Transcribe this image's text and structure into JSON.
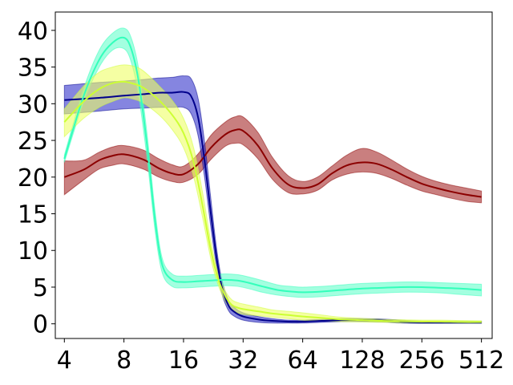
{
  "chart_data": {
    "type": "line",
    "title": "",
    "xlabel": "",
    "ylabel": "",
    "x_scale": "log2",
    "x_ticks": [
      4,
      8,
      16,
      32,
      64,
      128,
      256,
      512
    ],
    "x_tick_labels": [
      "4",
      "8",
      "16",
      "32",
      "64",
      "128",
      "256",
      "512"
    ],
    "y_ticks": [
      0,
      5,
      10,
      15,
      20,
      25,
      30,
      35,
      40
    ],
    "y_tick_labels": [
      "0",
      "5",
      "10",
      "15",
      "20",
      "25",
      "30",
      "35",
      "40"
    ],
    "xlim": [
      3.6,
      580
    ],
    "ylim": [
      -2,
      42.5
    ],
    "grid": false,
    "legend": "none",
    "series": [
      {
        "color": "#8b0000",
        "band_color": "#a52a2a",
        "x": [
          4,
          5,
          6,
          7,
          8,
          10,
          12,
          14,
          16,
          19,
          22,
          26,
          29,
          32,
          38,
          45,
          54,
          64,
          76,
          90,
          107,
          128,
          152,
          181,
          215,
          256,
          304,
          362,
          430,
          512
        ],
        "y": [
          20.0,
          21.0,
          22.3,
          22.9,
          23.1,
          22.4,
          21.2,
          20.5,
          20.4,
          21.8,
          24.0,
          25.8,
          26.4,
          26.3,
          24.3,
          21.2,
          19.0,
          18.5,
          19.0,
          20.5,
          21.6,
          22.0,
          21.8,
          21.0,
          20.0,
          19.1,
          18.5,
          18.0,
          17.6,
          17.3
        ],
        "lower": [
          17.6,
          19.6,
          21.1,
          21.6,
          21.8,
          21.1,
          20.0,
          19.4,
          19.3,
          20.4,
          22.4,
          24.2,
          24.6,
          24.4,
          22.5,
          19.7,
          17.9,
          17.7,
          18.2,
          19.6,
          20.4,
          20.7,
          20.5,
          19.8,
          18.9,
          18.1,
          17.6,
          17.1,
          16.7,
          16.5
        ],
        "upper": [
          22.2,
          22.3,
          23.4,
          24.1,
          24.3,
          23.7,
          22.5,
          21.7,
          21.5,
          23.2,
          25.7,
          27.5,
          28.2,
          28.2,
          26.1,
          22.7,
          20.2,
          19.4,
          20.0,
          21.5,
          23.0,
          23.9,
          23.4,
          22.3,
          21.1,
          20.1,
          19.4,
          18.9,
          18.5,
          18.1
        ]
      },
      {
        "color": "#00008b",
        "band_color": "#3333cc",
        "x": [
          4,
          6,
          8,
          10,
          12,
          14,
          16,
          17.5,
          19,
          20.5,
          22,
          23.5,
          25,
          27,
          29,
          32,
          38,
          45,
          54,
          64,
          80,
          100,
          128,
          160,
          200,
          256,
          320,
          400,
          512
        ],
        "y": [
          30.5,
          30.8,
          31.1,
          31.3,
          31.5,
          31.5,
          31.6,
          31.0,
          28.0,
          22.0,
          15.0,
          9.0,
          5.0,
          2.5,
          1.6,
          1.0,
          0.6,
          0.4,
          0.3,
          0.3,
          0.4,
          0.5,
          0.5,
          0.45,
          0.3,
          0.2,
          0.2,
          0.2,
          0.2
        ],
        "lower": [
          28.6,
          29.0,
          29.3,
          29.4,
          29.5,
          29.5,
          29.5,
          28.6,
          25.5,
          19.7,
          13.1,
          7.8,
          4.1,
          1.8,
          1.0,
          0.5,
          0.2,
          0.1,
          0.1,
          0.1,
          0.2,
          0.3,
          0.3,
          0.25,
          0.1,
          0.05,
          0.05,
          0.05,
          0.05
        ],
        "upper": [
          32.5,
          32.9,
          33.1,
          33.3,
          33.5,
          33.6,
          33.8,
          33.4,
          30.6,
          24.5,
          17.0,
          10.3,
          6.0,
          3.2,
          2.2,
          1.5,
          1.0,
          0.7,
          0.5,
          0.5,
          0.6,
          0.7,
          0.7,
          0.65,
          0.5,
          0.35,
          0.35,
          0.35,
          0.35
        ]
      },
      {
        "color": "#33ffbb",
        "band_color": "#66ffcc",
        "x": [
          4,
          5,
          6,
          7,
          8,
          8.7,
          9.5,
          10.5,
          11.5,
          12.5,
          14,
          16,
          19,
          22,
          26,
          30,
          34,
          40,
          48,
          56,
          64,
          80,
          100,
          128,
          160,
          200,
          256,
          320,
          400,
          512
        ],
        "y": [
          22.5,
          31.0,
          36.0,
          38.3,
          39.0,
          37.5,
          33.0,
          24.0,
          14.0,
          8.0,
          6.0,
          5.7,
          5.8,
          5.9,
          6.0,
          5.9,
          5.6,
          5.1,
          4.6,
          4.4,
          4.3,
          4.4,
          4.6,
          4.8,
          4.9,
          5.0,
          5.0,
          4.9,
          4.8,
          4.6
        ],
        "lower": [
          22.0,
          30.2,
          35.0,
          37.3,
          37.5,
          35.7,
          31.0,
          22.2,
          12.6,
          6.9,
          5.1,
          4.9,
          5.0,
          5.1,
          5.2,
          5.1,
          4.8,
          4.3,
          3.9,
          3.7,
          3.6,
          3.7,
          3.9,
          4.1,
          4.2,
          4.3,
          4.3,
          4.2,
          4.0,
          3.8
        ],
        "upper": [
          23.0,
          32.0,
          37.3,
          39.6,
          40.3,
          39.0,
          34.7,
          25.6,
          15.3,
          8.9,
          6.8,
          6.5,
          6.6,
          6.7,
          6.8,
          6.7,
          6.4,
          5.9,
          5.3,
          5.1,
          5.0,
          5.1,
          5.3,
          5.5,
          5.6,
          5.7,
          5.7,
          5.6,
          5.5,
          5.4
        ]
      },
      {
        "color": "#ccff33",
        "band_color": "#eeff66",
        "x": [
          4,
          5,
          6,
          7,
          8,
          9,
          10,
          12,
          14,
          16,
          18,
          20,
          22,
          24,
          26,
          28,
          30,
          32,
          38,
          45,
          54,
          64,
          80,
          100,
          128,
          160,
          200,
          256,
          320,
          400,
          512
        ],
        "y": [
          27.5,
          30.3,
          32.0,
          32.8,
          33.0,
          32.7,
          32.2,
          30.5,
          28.5,
          26.0,
          22.0,
          16.0,
          10.0,
          6.0,
          3.8,
          2.6,
          2.2,
          2.0,
          1.7,
          1.4,
          1.2,
          1.0,
          0.8,
          0.6,
          0.5,
          0.4,
          0.35,
          0.3,
          0.3,
          0.25,
          0.25
        ],
        "lower": [
          25.5,
          28.0,
          29.5,
          30.3,
          30.8,
          30.6,
          30.1,
          28.5,
          26.5,
          24.0,
          20.0,
          14.4,
          8.8,
          5.2,
          3.1,
          1.9,
          1.5,
          1.3,
          1.1,
          0.9,
          0.7,
          0.5,
          0.4,
          0.3,
          0.25,
          0.2,
          0.15,
          0.1,
          0.1,
          0.1,
          0.1
        ],
        "upper": [
          29.3,
          32.4,
          34.3,
          35.0,
          35.3,
          35.1,
          34.5,
          32.5,
          30.5,
          28.0,
          24.0,
          17.8,
          11.2,
          6.8,
          4.5,
          3.3,
          2.9,
          2.7,
          2.3,
          1.9,
          1.7,
          1.5,
          1.2,
          0.9,
          0.75,
          0.6,
          0.55,
          0.5,
          0.5,
          0.45,
          0.4
        ]
      }
    ]
  }
}
